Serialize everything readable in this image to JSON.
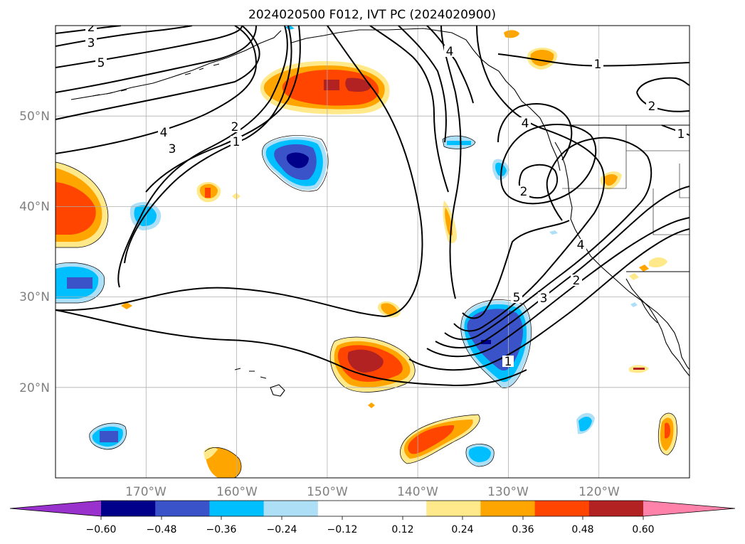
{
  "chart_data": {
    "type": "contour_map",
    "title": "2024020500 F012, IVT PC (2024020900)",
    "map": {
      "lon_range": [
        -180,
        -110
      ],
      "lat_range": [
        10,
        60
      ],
      "grid": true,
      "lat_ticks": [
        {
          "value": 20,
          "label": "20°N"
        },
        {
          "value": 30,
          "label": "30°N"
        },
        {
          "value": 40,
          "label": "40°N"
        },
        {
          "value": 50,
          "label": "50°N"
        }
      ],
      "lon_ticks": [
        {
          "value": -170,
          "label": "170°W"
        },
        {
          "value": -160,
          "label": "160°W"
        },
        {
          "value": -150,
          "label": "150°W"
        },
        {
          "value": -140,
          "label": "140°W"
        },
        {
          "value": -130,
          "label": "130°W"
        },
        {
          "value": -120,
          "label": "120°W"
        }
      ]
    },
    "colorbar": {
      "extend": "both",
      "levels": [
        -0.6,
        -0.48,
        -0.36,
        -0.24,
        -0.12,
        0.12,
        0.24,
        0.36,
        0.48,
        0.6
      ],
      "tick_labels": [
        "−0.60",
        "−0.48",
        "−0.36",
        "−0.24",
        "−0.12",
        "0.12",
        "0.24",
        "0.36",
        "0.48",
        "0.60"
      ],
      "colors": [
        "#9932CC",
        "#00008B",
        "#3A53C8",
        "#00BFFF",
        "#ADE0F7",
        "#FFFFFF",
        "#FFE98A",
        "#FFA500",
        "#FF4500",
        "#B22222",
        "#FF82AB"
      ]
    },
    "contour_labels": [
      "1",
      "2",
      "3",
      "4",
      "5"
    ]
  }
}
